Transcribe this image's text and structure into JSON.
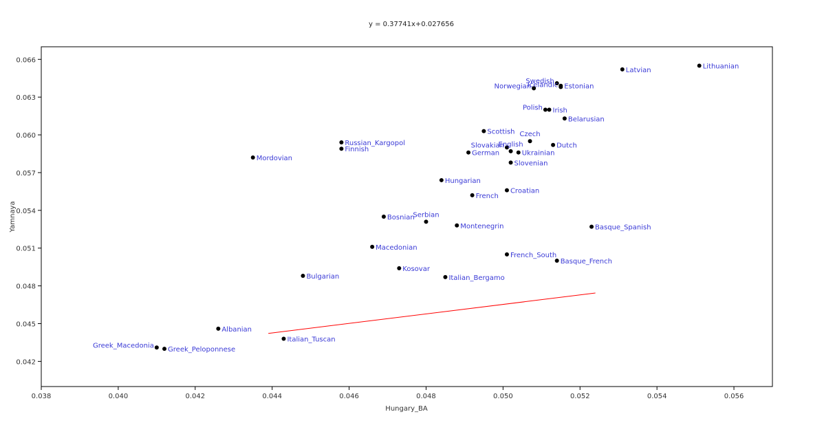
{
  "chart_data": {
    "type": "scatter",
    "title": "y = 0.37741x+0.027656",
    "xlabel": "Hungary_BA",
    "ylabel": "Yamnaya",
    "xlim": [
      0.038,
      0.057
    ],
    "ylim": [
      0.04,
      0.067
    ],
    "xticks": [
      "0.038",
      "0.040",
      "0.042",
      "0.044",
      "0.046",
      "0.048",
      "0.050",
      "0.052",
      "0.054",
      "0.056"
    ],
    "yticks": [
      "0.042",
      "0.045",
      "0.048",
      "0.051",
      "0.054",
      "0.057",
      "0.060",
      "0.063",
      "0.066"
    ],
    "grid": false,
    "legend": "none",
    "trendline": {
      "slope": 0.37741,
      "intercept": 0.027656,
      "x_range": [
        0.0439,
        0.0524
      ],
      "color": "#ff0000"
    },
    "point_color": "#000000",
    "label_color": "#3a3ad6",
    "points": [
      {
        "name": "Lithuanian",
        "x": 0.0551,
        "y": 0.0655,
        "anchor": "start"
      },
      {
        "name": "Latvian",
        "x": 0.0531,
        "y": 0.0652,
        "anchor": "start"
      },
      {
        "name": "Swedish",
        "x": 0.0514,
        "y": 0.0641,
        "anchor": "end"
      },
      {
        "name": "Estonian",
        "x": 0.0515,
        "y": 0.0639,
        "anchor": "start"
      },
      {
        "name": "Icelandic",
        "x": 0.0515,
        "y": 0.0638,
        "anchor": "end"
      },
      {
        "name": "Norwegian",
        "x": 0.0508,
        "y": 0.0637,
        "anchor": "end"
      },
      {
        "name": "Irish",
        "x": 0.0512,
        "y": 0.062,
        "anchor": "start"
      },
      {
        "name": "Polish",
        "x": 0.0511,
        "y": 0.062,
        "anchor": "end"
      },
      {
        "name": "Belarusian",
        "x": 0.0516,
        "y": 0.0613,
        "anchor": "start"
      },
      {
        "name": "Scottish",
        "x": 0.0495,
        "y": 0.0603,
        "anchor": "start"
      },
      {
        "name": "Czech",
        "x": 0.0507,
        "y": 0.0595,
        "anchor": "middle"
      },
      {
        "name": "Dutch",
        "x": 0.0513,
        "y": 0.0592,
        "anchor": "start"
      },
      {
        "name": "Slovakian",
        "x": 0.0501,
        "y": 0.059,
        "anchor": "end"
      },
      {
        "name": "English",
        "x": 0.0502,
        "y": 0.0587,
        "anchor": "middle"
      },
      {
        "name": "Ukrainian",
        "x": 0.0504,
        "y": 0.0586,
        "anchor": "start"
      },
      {
        "name": "German",
        "x": 0.0491,
        "y": 0.0586,
        "anchor": "start"
      },
      {
        "name": "Slovenian",
        "x": 0.0502,
        "y": 0.0578,
        "anchor": "start"
      },
      {
        "name": "Russian_Kargopol",
        "x": 0.0458,
        "y": 0.0594,
        "anchor": "start"
      },
      {
        "name": "Finnish",
        "x": 0.0458,
        "y": 0.0589,
        "anchor": "start"
      },
      {
        "name": "Mordovian",
        "x": 0.0435,
        "y": 0.0582,
        "anchor": "start"
      },
      {
        "name": "Hungarian",
        "x": 0.0484,
        "y": 0.0564,
        "anchor": "start"
      },
      {
        "name": "Croatian",
        "x": 0.0501,
        "y": 0.0556,
        "anchor": "start"
      },
      {
        "name": "French",
        "x": 0.0492,
        "y": 0.0552,
        "anchor": "start"
      },
      {
        "name": "Bosnian",
        "x": 0.0469,
        "y": 0.0535,
        "anchor": "start"
      },
      {
        "name": "Serbian",
        "x": 0.048,
        "y": 0.0531,
        "anchor": "middle"
      },
      {
        "name": "Montenegrin",
        "x": 0.0488,
        "y": 0.0528,
        "anchor": "start"
      },
      {
        "name": "Basque_Spanish",
        "x": 0.0523,
        "y": 0.0527,
        "anchor": "start"
      },
      {
        "name": "Macedonian",
        "x": 0.0466,
        "y": 0.0511,
        "anchor": "start"
      },
      {
        "name": "French_South",
        "x": 0.0501,
        "y": 0.0505,
        "anchor": "start"
      },
      {
        "name": "Basque_French",
        "x": 0.0514,
        "y": 0.05,
        "anchor": "start"
      },
      {
        "name": "Kosovar",
        "x": 0.0473,
        "y": 0.0494,
        "anchor": "start"
      },
      {
        "name": "Bulgarian",
        "x": 0.0448,
        "y": 0.0488,
        "anchor": "start"
      },
      {
        "name": "Italian_Bergamo",
        "x": 0.0485,
        "y": 0.0487,
        "anchor": "start"
      },
      {
        "name": "Albanian",
        "x": 0.0426,
        "y": 0.0446,
        "anchor": "start"
      },
      {
        "name": "Italian_Tuscan",
        "x": 0.0443,
        "y": 0.0438,
        "anchor": "start"
      },
      {
        "name": "Greek_Macedonia",
        "x": 0.041,
        "y": 0.0431,
        "anchor": "end"
      },
      {
        "name": "Greek_Peloponnese",
        "x": 0.0412,
        "y": 0.043,
        "anchor": "start"
      }
    ]
  }
}
